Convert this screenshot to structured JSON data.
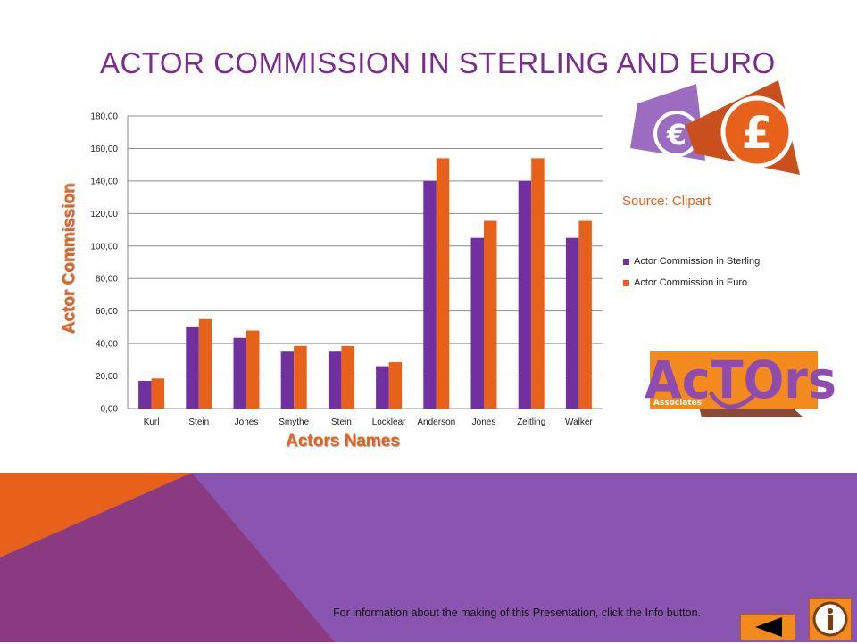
{
  "slide": {
    "title": "ACTOR COMMISSION IN STERLING AND EURO",
    "source_text": "Source: Clipart",
    "info_text": "For information about the making of this Presentation, click the Info button.",
    "logo_text": {
      "main": "AcTOrs",
      "sub": "Associates"
    }
  },
  "colors": {
    "title": "#7a2d8e",
    "sterling": "#7030a0",
    "euro": "#e8611a",
    "axis_title": "#e8611a",
    "bottom_purple": "#8a55b0",
    "bottom_dark": "#8a3a80",
    "bottom_orange": "#e8611a"
  },
  "icons": [
    "euro-note-icon",
    "pound-note-icon",
    "back-arrow-icon",
    "info-icon"
  ],
  "chart_data": {
    "type": "bar",
    "title": "",
    "xlabel": "Actors Names",
    "ylabel": "Actor Commission",
    "categories": [
      "Kurl",
      "Stein",
      "Jones",
      "Smythe",
      "Stein",
      "Locklear",
      "Anderson",
      "Jones",
      "Zeitling",
      "Walker"
    ],
    "series": [
      {
        "name": "Actor Commission in Sterling",
        "values": [
          17,
          50,
          43.5,
          35,
          35,
          26,
          140,
          105,
          140,
          105
        ]
      },
      {
        "name": "Actor Commission in Euro",
        "values": [
          18.5,
          55,
          48,
          38.5,
          38.5,
          28.5,
          154,
          115.5,
          154,
          115.5
        ]
      }
    ],
    "ylim": [
      0,
      180
    ],
    "yticks": [
      "0,00",
      "20,00",
      "40,00",
      "60,00",
      "80,00",
      "100,00",
      "120,00",
      "140,00",
      "160,00",
      "180,00"
    ],
    "grid": true,
    "legend_position": "right"
  }
}
